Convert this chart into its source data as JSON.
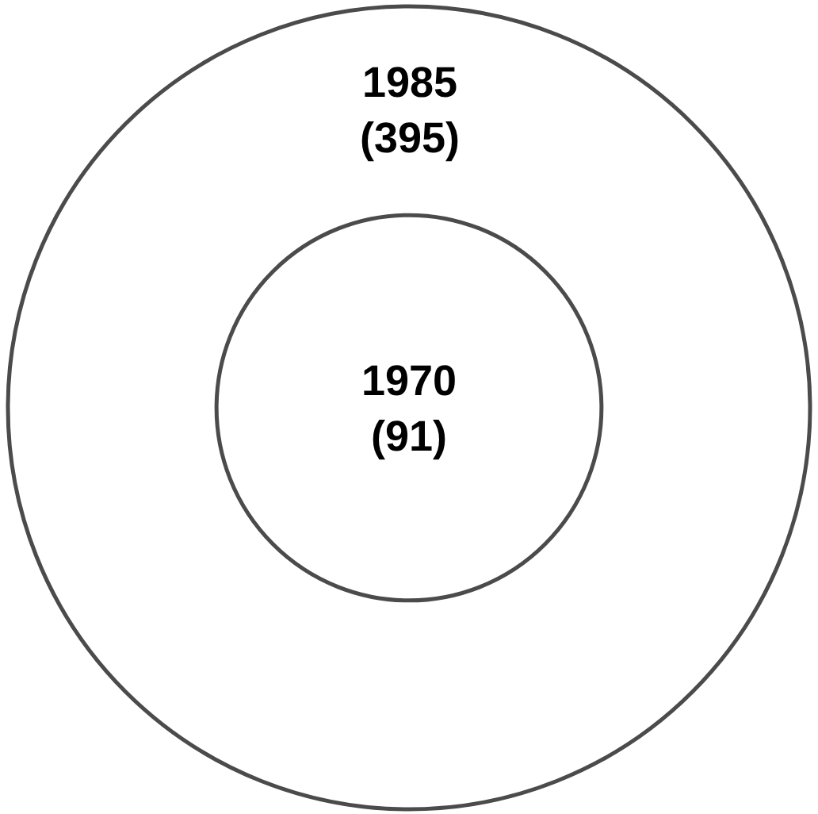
{
  "chart_data": {
    "type": "other",
    "categories": [
      "1985",
      "1970"
    ],
    "values": [
      395,
      91
    ],
    "value_labels": [
      "(395)",
      "(91)"
    ]
  }
}
